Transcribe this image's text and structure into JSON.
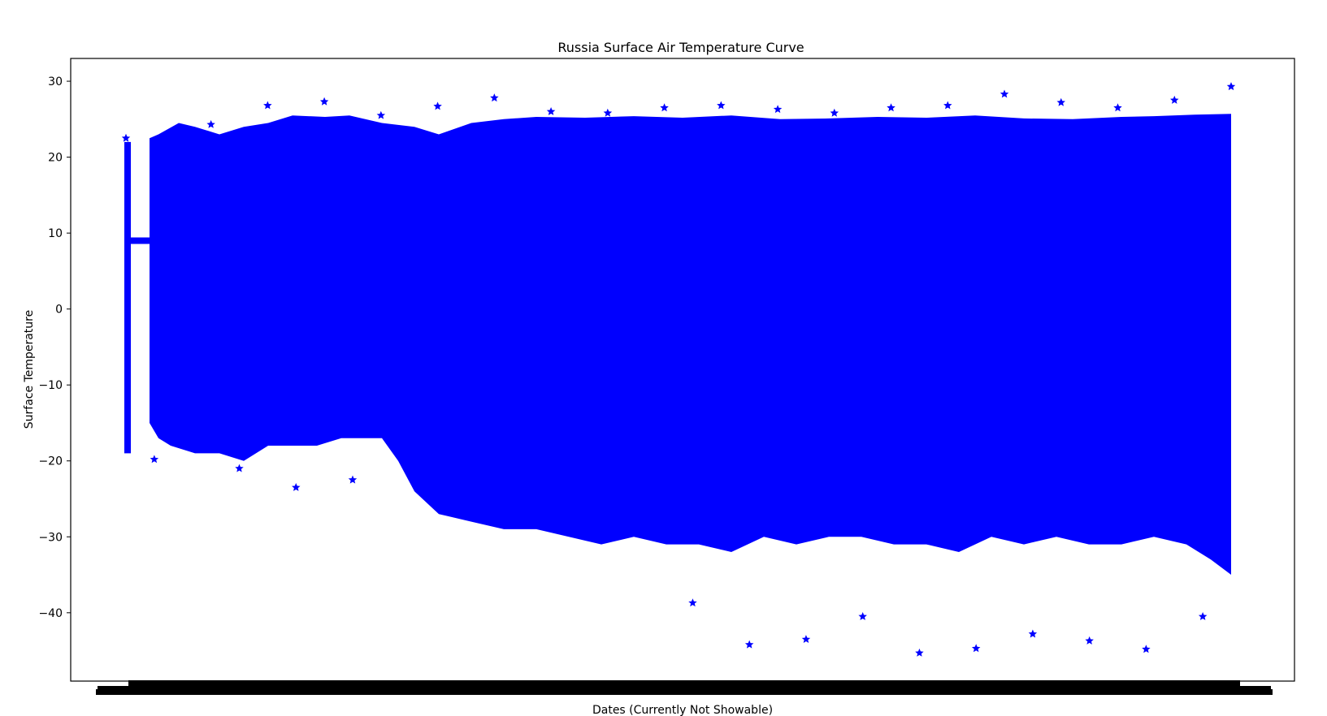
{
  "chart_data": {
    "type": "scatter",
    "title": "Russia Surface Air Temperature Curve",
    "xlabel": "Dates (Currently Not Showable)",
    "ylabel": "Surface Temperature",
    "ylim": [
      -49,
      33
    ],
    "yticks": [
      30,
      20,
      10,
      0,
      -10,
      -20,
      -30,
      -40
    ],
    "x_tick_labels_visible": false,
    "marker": "star",
    "marker_color": "#0000ff",
    "grid": false,
    "legend": "none",
    "series": [
      {
        "x": [
          1,
          2,
          3,
          4,
          5,
          6,
          7,
          8,
          9,
          10,
          11,
          12,
          13,
          14,
          15,
          16,
          17,
          18,
          19,
          20,
          21,
          22,
          23,
          24,
          25,
          26,
          27,
          28,
          29,
          30,
          31,
          32,
          33,
          34,
          35,
          36,
          37,
          38,
          39,
          40
        ],
        "y": [
          22.5,
          -19.8,
          9,
          24.3,
          -21,
          26.8,
          -23.5,
          27.3,
          -22.5,
          25.5,
          -20.5,
          26.7,
          -24,
          27.8,
          -18,
          26,
          -22.5,
          25.8,
          -27.5,
          26.5,
          -38.7,
          26.8,
          -44.2,
          26.3,
          -43.5,
          25.8,
          -40.5,
          26.5,
          -45.3,
          26.8,
          -44.7,
          28.3,
          -42.8,
          27.2,
          -43.7,
          26.5,
          -44.8,
          27.5,
          -40.5,
          29.3
        ]
      }
    ]
  }
}
